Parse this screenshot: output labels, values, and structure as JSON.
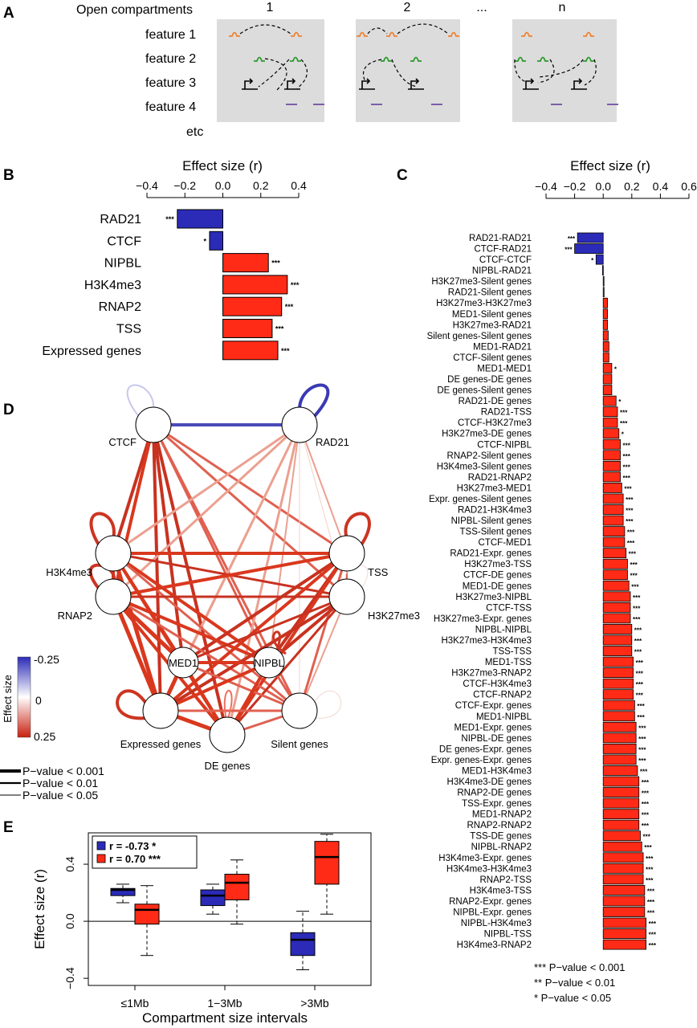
{
  "panel_labels": {
    "a": "A",
    "b": "B",
    "c": "C",
    "d": "D",
    "e": "E"
  },
  "panel_a": {
    "row_labels": [
      "Open compartments",
      "feature 1",
      "feature 2",
      "feature 3",
      "feature 4",
      "etc"
    ],
    "column_labels": [
      "1",
      "2",
      "...",
      "n"
    ],
    "colors": {
      "feature1": "#f08030",
      "feature2": "#2a9a2a",
      "feature4": "#7050a0",
      "box": "#dcdcdc"
    }
  },
  "chart_data": [
    {
      "id": "panel_b",
      "type": "bar",
      "orientation": "horizontal",
      "title": "Effect size (r)",
      "xlim": [
        -0.4,
        0.4
      ],
      "ticks": [
        "-0.4",
        "-0.2",
        "0.0",
        "0.2",
        "0.4"
      ],
      "categories": [
        "RAD21",
        "CTCF",
        "NIPBL",
        "H3K4me3",
        "RNAP2",
        "TSS",
        "Expressed genes"
      ],
      "values": [
        -0.24,
        -0.07,
        0.24,
        0.34,
        0.31,
        0.26,
        0.29
      ],
      "significance": [
        "***",
        "*",
        "***",
        "***",
        "***",
        "***",
        "***"
      ],
      "colors": {
        "negative": "#2b2bb8",
        "positive": "#ff2b16"
      }
    },
    {
      "id": "panel_c",
      "type": "bar",
      "orientation": "horizontal",
      "title": "Effect size (r)",
      "xlim": [
        -0.4,
        0.6
      ],
      "ticks": [
        "-0.4",
        "-0.2",
        "0.0",
        "0.2",
        "0.4",
        "0.6"
      ],
      "categories": [
        "RAD21-RAD21",
        "CTCF-RAD21",
        "CTCF-CTCF",
        "NIPBL-RAD21",
        "H3K27me3-Silent genes",
        "RAD21-Silent genes",
        "H3K27me3-H3K27me3",
        "MED1-Silent genes",
        "H3K27me3-RAD21",
        "Silent genes-Silent genes",
        "MED1-RAD21",
        "CTCF-Silent genes",
        "MED1-MED1",
        "DE genes-DE genes",
        "DE genes-Silent genes",
        "RAD21-DE genes",
        "RAD21-TSS",
        "CTCF-H3K27me3",
        "H3K27me3-DE genes",
        "CTCF-NIPBL",
        "RNAP2-Silent genes",
        "H3K4me3-Silent genes",
        "RAD21-RNAP2",
        "H3K27me3-MED1",
        "Expr. genes-Silent genes",
        "RAD21-H3K4me3",
        "NIPBL-Silent genes",
        "TSS-Silent genes",
        "CTCF-MED1",
        "RAD21-Expr. genes",
        "H3K27me3-TSS",
        "CTCF-DE genes",
        "MED1-DE genes",
        "H3K27me3-NIPBL",
        "CTCF-TSS",
        "H3K27me3-Expr. genes",
        "NIPBL-NIPBL",
        "H3K27me3-H3K4me3",
        "TSS-TSS",
        "MED1-TSS",
        "H3K27me3-RNAP2",
        "CTCF-H3K4me3",
        "CTCF-RNAP2",
        "CTCF-Expr. genes",
        "MED1-NIPBL",
        "MED1-Expr. genes",
        "NIPBL-DE genes",
        "DE genes-Expr. genes",
        "Expr. genes-Expr. genes",
        "MED1-H3K4me3",
        "H3K4me3-DE genes",
        "RNAP2-DE genes",
        "TSS-Expr. genes",
        "MED1-RNAP2",
        "RNAP2-RNAP2",
        "TSS-DE genes",
        "NIPBL-RNAP2",
        "H3K4me3-Expr. genes",
        "H3K4me3-H3K4me3",
        "RNAP2-TSS",
        "H3K4me3-TSS",
        "RNAP2-Expr. genes",
        "NIPBL-Expr. genes",
        "NIPBL-H3K4me3",
        "NIPBL-TSS",
        "H3K4me3-RNAP2"
      ],
      "values": [
        -0.18,
        -0.2,
        -0.05,
        -0.005,
        0.003,
        0.006,
        0.03,
        0.03,
        0.03,
        0.035,
        0.04,
        0.04,
        0.06,
        0.06,
        0.06,
        0.09,
        0.1,
        0.1,
        0.11,
        0.12,
        0.12,
        0.12,
        0.12,
        0.13,
        0.14,
        0.14,
        0.14,
        0.15,
        0.15,
        0.16,
        0.17,
        0.17,
        0.18,
        0.19,
        0.19,
        0.19,
        0.2,
        0.2,
        0.2,
        0.21,
        0.21,
        0.21,
        0.21,
        0.22,
        0.22,
        0.23,
        0.23,
        0.23,
        0.23,
        0.24,
        0.25,
        0.25,
        0.25,
        0.25,
        0.25,
        0.26,
        0.27,
        0.28,
        0.28,
        0.28,
        0.29,
        0.29,
        0.29,
        0.3,
        0.3,
        0.3
      ],
      "significance": [
        "***",
        "***",
        "*",
        "",
        "",
        "",
        "",
        "",
        "",
        "",
        "",
        "",
        "*",
        "",
        "",
        "*",
        "***",
        "***",
        "*",
        "***",
        "***",
        "***",
        "***",
        "***",
        "***",
        "***",
        "***",
        "***",
        "***",
        "***",
        "***",
        "***",
        "***",
        "***",
        "***",
        "***",
        "***",
        "***",
        "***",
        "***",
        "***",
        "***",
        "***",
        "***",
        "***",
        "***",
        "***",
        "***",
        "***",
        "***",
        "***",
        "***",
        "***",
        "***",
        "***",
        "***",
        "***",
        "***",
        "***",
        "***",
        "***",
        "***",
        "***",
        "***",
        "***",
        "***"
      ],
      "legend": [
        "*** P−value < 0.001",
        "** P−value < 0.01",
        "* P−value < 0.05"
      ]
    },
    {
      "id": "panel_d",
      "type": "network",
      "nodes": [
        "CTCF",
        "RAD21",
        "H3K4me3",
        "TSS",
        "RNAP2",
        "H3K27me3",
        "MED1",
        "NIPBL",
        "Expressed genes",
        "DE genes",
        "Silent genes"
      ],
      "colorbar": {
        "label": "Effect size",
        "ticks": [
          "-0.25",
          "0",
          "0.25"
        ]
      },
      "legend": [
        "P−value < 0.001",
        "P−value < 0.01",
        "P−value < 0.05"
      ]
    },
    {
      "id": "panel_e",
      "type": "boxplot",
      "xlabel": "Compartment size intervals",
      "ylabel": "Effect size (r)",
      "ylim": [
        -0.45,
        0.62
      ],
      "yticks": [
        "-0.4",
        "0.0",
        "0.4"
      ],
      "categories": [
        "≤1Mb",
        "1−3Mb",
        ">3Mb"
      ],
      "series": [
        {
          "name": "r = -0.73 *",
          "color": "#2b2bb8",
          "boxes": [
            [
              0.13,
              0.18,
              0.22,
              0.23,
              0.26
            ],
            [
              0.05,
              0.11,
              0.18,
              0.22,
              0.26
            ],
            [
              -0.34,
              -0.24,
              -0.13,
              -0.08,
              0.07
            ]
          ]
        },
        {
          "name": "r = 0.70 ***",
          "color": "#ff2b16",
          "boxes": [
            [
              -0.24,
              -0.02,
              0.08,
              0.12,
              0.25
            ],
            [
              -0.02,
              0.15,
              0.27,
              0.33,
              0.43
            ],
            [
              0.05,
              0.26,
              0.45,
              0.56,
              0.61
            ]
          ]
        }
      ]
    }
  ]
}
